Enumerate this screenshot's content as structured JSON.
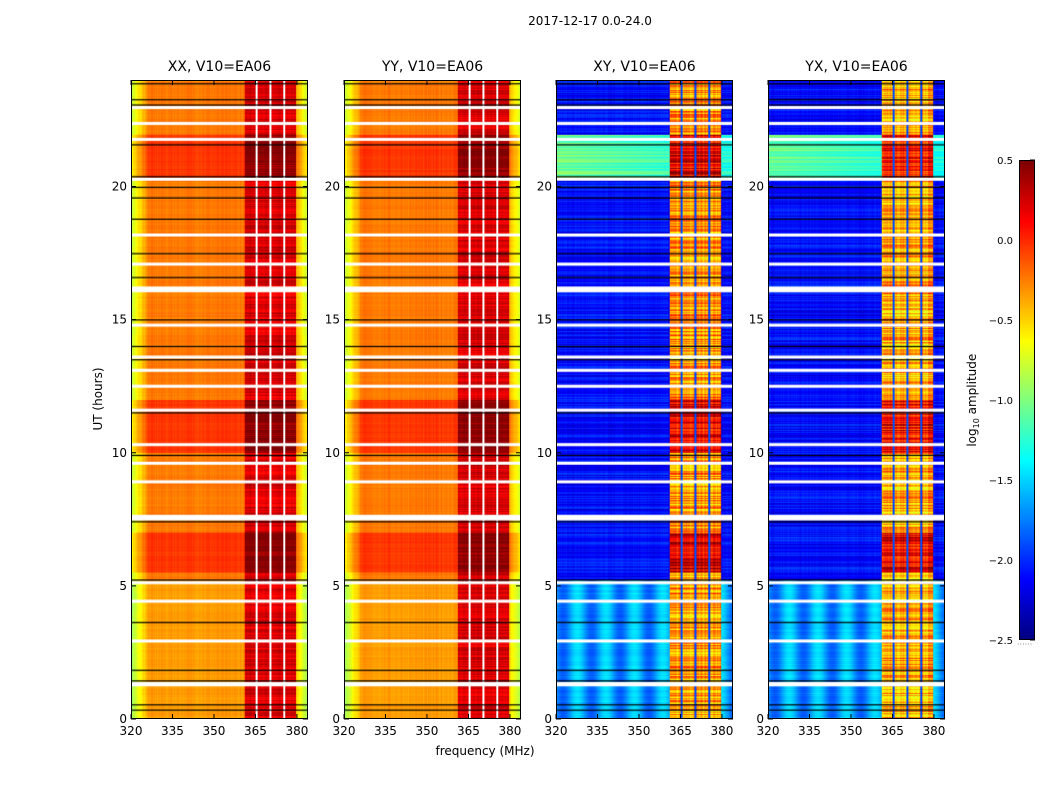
{
  "suptitle": "2017-12-17 0.0-24.0",
  "chart_data": {
    "type": "heatmap",
    "xlabel": "frequency (MHz)",
    "ylabel": "UT (hours)",
    "xlim": [
      320,
      384
    ],
    "ylim": [
      0,
      24
    ],
    "xticks": [
      "320",
      "335",
      "350",
      "365",
      "380"
    ],
    "xtick_values": [
      320,
      335,
      350,
      365,
      380
    ],
    "yticks": [
      "0",
      "5",
      "10",
      "15",
      "20"
    ],
    "ytick_values": [
      0,
      5,
      10,
      15,
      20
    ],
    "colorbar": {
      "label_prefix": "log",
      "label_sub": "10",
      "label_suffix": " amplitude",
      "range": [
        -2.5,
        0.5
      ],
      "ticks": [
        "0.5",
        "0.0",
        "−0.5",
        "−1.0",
        "−1.5",
        "−2.0",
        "−2.5"
      ],
      "tick_values": [
        0.5,
        0.0,
        -0.5,
        -1.0,
        -1.5,
        -2.0,
        -2.5
      ],
      "colormap": "jet"
    },
    "panels": [
      {
        "title": "XX, V10=EA06",
        "kind": "parallel"
      },
      {
        "title": "YY, V10=EA06",
        "kind": "parallel"
      },
      {
        "title": "XY, V10=EA06",
        "kind": "cross"
      },
      {
        "title": "YX, V10=EA06",
        "kind": "cross"
      }
    ],
    "rfi_band_mhz": [
      361,
      380
    ],
    "channel_gaps_mhz": [
      365.5,
      370.5,
      375.5
    ],
    "flagged_hours_white": [
      1.25,
      1.3,
      2.9,
      4.4,
      5.1,
      7.5,
      7.6,
      8.9,
      9.6,
      10.3,
      11.6,
      12.5,
      13.1,
      13.6,
      14.8,
      16.1,
      16.2,
      17.1,
      18.2,
      20.3,
      21.8,
      22.4,
      23.0
    ],
    "black_line_hours": [
      0.3,
      0.5,
      1.4,
      1.8,
      3.6,
      5.2,
      7.4,
      9.9,
      11.5,
      13.5,
      14.0,
      15.0,
      16.6,
      17.5,
      18.8,
      19.6,
      20.0,
      20.4,
      21.6,
      23.1,
      23.3,
      23.9
    ]
  }
}
